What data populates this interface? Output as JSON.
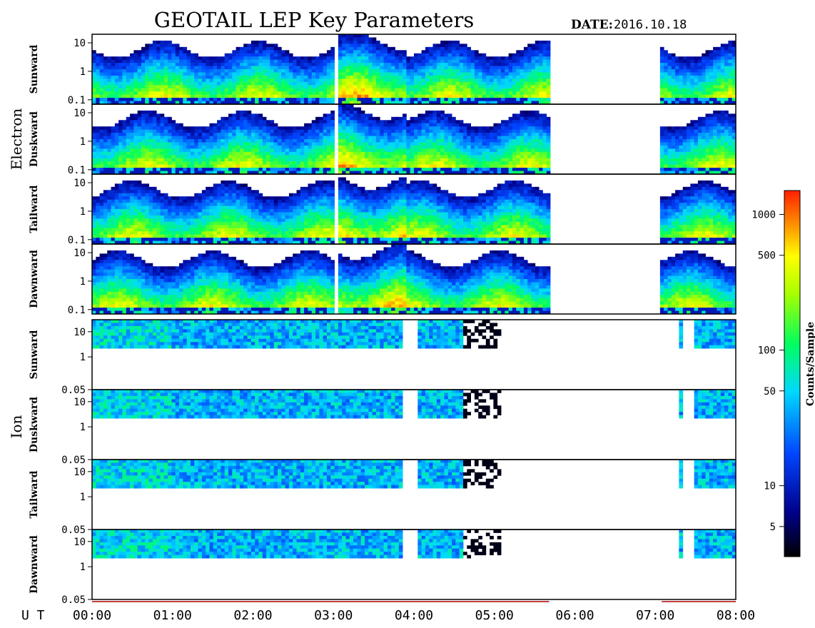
{
  "chart_data": {
    "type": "heatmap",
    "title": "GEOTAIL LEP Key Parameters",
    "date_label": "DATE:",
    "date_value": "2016.10.18",
    "x_axis": {
      "label": "U T",
      "range": [
        "00:00",
        "08:00"
      ],
      "tick_labels": [
        "00:00",
        "01:00",
        "02:00",
        "03:00",
        "04:00",
        "05:00",
        "06:00",
        "07:00",
        "08:00"
      ],
      "tick_values_hours": [
        0,
        1,
        2,
        3,
        4,
        5,
        6,
        7,
        8
      ]
    },
    "groups": [
      {
        "name": "Electron",
        "panels": [
          {
            "name": "Sunward",
            "y_tick_labels": [
              "10",
              "1",
              "0.1"
            ],
            "y_tick_values": [
              10,
              1,
              0.1
            ]
          },
          {
            "name": "Duskward",
            "y_tick_labels": [
              "10",
              "1",
              "0.1"
            ],
            "y_tick_values": [
              10,
              1,
              0.1
            ]
          },
          {
            "name": "Tailward",
            "y_tick_labels": [
              "10",
              "1",
              "0.1"
            ],
            "y_tick_values": [
              10,
              1,
              0.1
            ]
          },
          {
            "name": "Dawnward",
            "y_tick_labels": [
              "10",
              "1",
              "0.1"
            ],
            "y_tick_values": [
              10,
              1,
              0.1
            ]
          }
        ],
        "data_coverage_hours": [
          [
            0.0,
            3.02
          ],
          [
            3.04,
            5.68
          ],
          [
            7.08,
            8.0
          ]
        ],
        "data_gaps_hours": [
          [
            5.68,
            7.08
          ]
        ]
      },
      {
        "name": "Ion",
        "panels": [
          {
            "name": "Sunward",
            "y_tick_labels": [
              "10",
              "1",
              "0.05"
            ],
            "y_tick_values": [
              10,
              1,
              0.05
            ]
          },
          {
            "name": "Duskward",
            "y_tick_labels": [
              "10",
              "1",
              "0.05"
            ],
            "y_tick_values": [
              10,
              1,
              0.05
            ]
          },
          {
            "name": "Tailward",
            "y_tick_labels": [
              "10",
              "1",
              "0.05"
            ],
            "y_tick_values": [
              10,
              1,
              0.05
            ]
          },
          {
            "name": "Dawnward",
            "y_tick_labels": [
              "10",
              "1",
              "0.05"
            ],
            "y_tick_values": [
              10,
              1,
              0.05
            ]
          }
        ],
        "data_coverage_hours": [
          [
            0.0,
            3.88
          ],
          [
            4.05,
            4.62
          ],
          [
            7.28,
            7.33
          ],
          [
            7.5,
            8.0
          ]
        ],
        "sparse_coverage_hours": [
          [
            4.62,
            5.1
          ]
        ],
        "data_gaps_hours": [
          [
            5.68,
            7.08
          ]
        ]
      }
    ],
    "colorbar": {
      "label": "Counts/Sample",
      "scale": "log",
      "range": [
        3,
        1500
      ],
      "tick_labels": [
        "1000",
        "500",
        "100",
        "50",
        "10",
        "5"
      ],
      "tick_values": [
        1000,
        500,
        100,
        50,
        10,
        5
      ],
      "colors": [
        "#000000",
        "#0000ff",
        "#00ffff",
        "#00ff00",
        "#ffff00",
        "#ff0000"
      ]
    },
    "grid": false
  }
}
